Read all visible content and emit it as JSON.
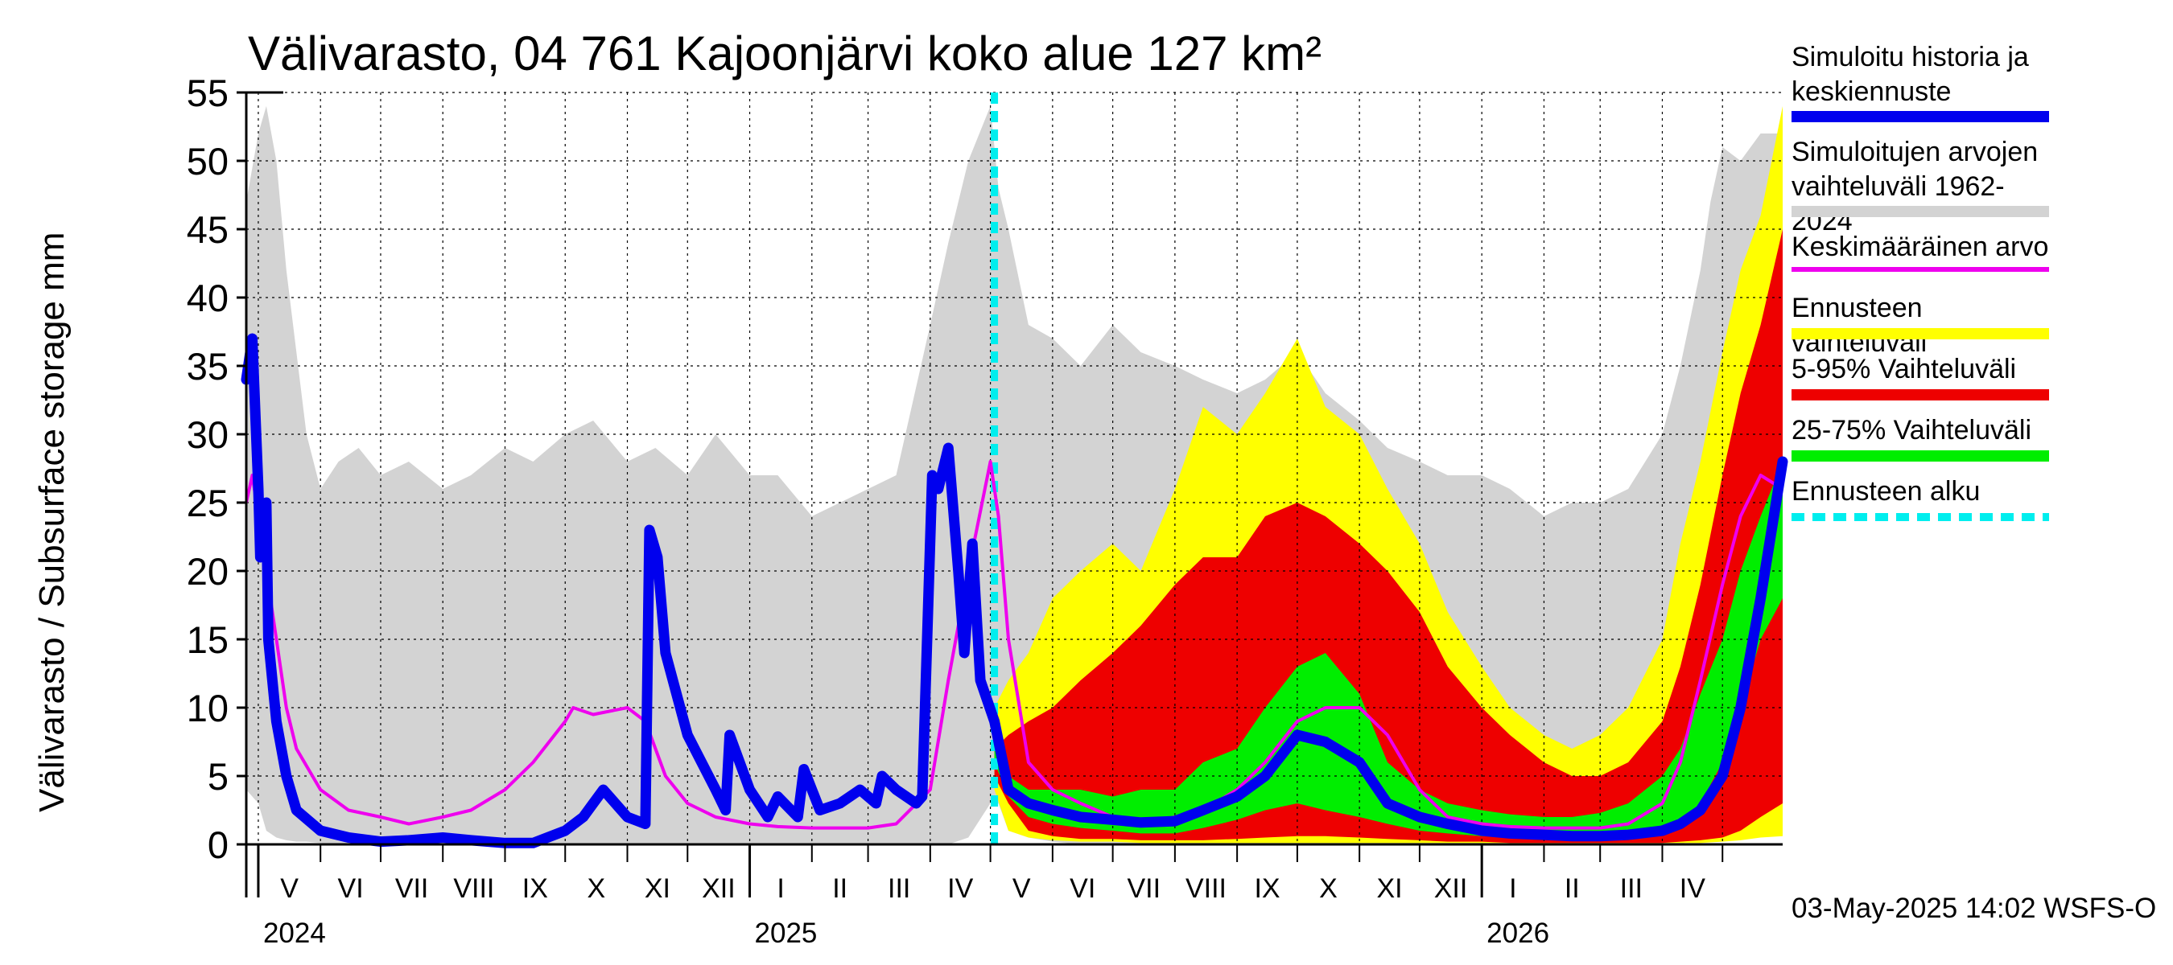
{
  "title": "Välivarasto, 04 761 Kajoonjärvi koko alue 127 km²",
  "ylabel": "Välivarasto / Subsurface storage  mm",
  "timestamp": "03-May-2025 14:02 WSFS-O",
  "legend": [
    {
      "label": "Simuloitu historia ja\nkeskiennuste",
      "color": "#0000ee",
      "style": "solid"
    },
    {
      "label": "Simuloitujen arvojen\nvaihteluväli 1962-2024",
      "color": "#d3d3d3",
      "style": "solid"
    },
    {
      "label": "Keskimääräinen arvo",
      "color": "#ee00ee",
      "style": "solid"
    },
    {
      "label": "Ennusteen vaihteluväli",
      "color": "#ffff00",
      "style": "solid"
    },
    {
      "label": "5-95% Vaihteluväli",
      "color": "#ee0000",
      "style": "solid"
    },
    {
      "label": "25-75% Vaihteluväli",
      "color": "#00ee00",
      "style": "solid"
    },
    {
      "label": "Ennusteen alku",
      "color": "#00eeee",
      "style": "dashed"
    }
  ],
  "chart_data": {
    "type": "line",
    "ylim": [
      0,
      55
    ],
    "yticks": [
      0,
      5,
      10,
      15,
      20,
      25,
      30,
      35,
      40,
      45,
      50,
      55
    ],
    "x_range": [
      "2024-04-25",
      "2026-05-31"
    ],
    "months": [
      "V",
      "VI",
      "VII",
      "VIII",
      "IX",
      "X",
      "XI",
      "XII",
      "I",
      "II",
      "III",
      "IV",
      "V",
      "VI",
      "VII",
      "VIII",
      "IX",
      "X",
      "XI",
      "XII",
      "I",
      "II",
      "III",
      "IV"
    ],
    "month_starts": [
      "2024-05-01",
      "2024-06-01",
      "2024-07-01",
      "2024-08-01",
      "2024-09-01",
      "2024-10-01",
      "2024-11-01",
      "2024-12-01",
      "2025-01-01",
      "2025-02-01",
      "2025-03-01",
      "2025-04-01",
      "2025-05-01",
      "2025-06-01",
      "2025-07-01",
      "2025-08-01",
      "2025-09-01",
      "2025-10-01",
      "2025-11-01",
      "2025-12-01",
      "2026-01-01",
      "2026-02-01",
      "2026-03-01",
      "2026-04-01",
      "2026-05-01"
    ],
    "years": [
      {
        "label": "2024",
        "date": "2024-05-01"
      },
      {
        "label": "2025",
        "date": "2025-01-01"
      },
      {
        "label": "2026",
        "date": "2026-01-01"
      }
    ],
    "forecast_start": "2025-05-03",
    "grid": true,
    "legend_position": "right",
    "historical_range": {
      "name": "Simuloitujen arvojen vaihteluväli 1962-2024",
      "color": "#d3d3d3",
      "x": [
        "2024-04-25",
        "2024-05-01",
        "2024-05-05",
        "2024-05-10",
        "2024-05-15",
        "2024-05-20",
        "2024-05-25",
        "2024-06-01",
        "2024-06-10",
        "2024-06-20",
        "2024-07-01",
        "2024-07-15",
        "2024-08-01",
        "2024-08-15",
        "2024-09-01",
        "2024-09-15",
        "2024-10-01",
        "2024-10-15",
        "2024-11-01",
        "2024-11-15",
        "2024-12-01",
        "2024-12-15",
        "2025-01-01",
        "2025-01-15",
        "2025-02-01",
        "2025-02-15",
        "2025-03-01",
        "2025-03-15",
        "2025-04-01",
        "2025-04-10",
        "2025-04-20",
        "2025-05-01",
        "2025-05-05",
        "2025-05-10",
        "2025-05-20",
        "2025-06-01",
        "2025-06-15",
        "2025-07-01",
        "2025-07-15",
        "2025-08-01",
        "2025-08-15",
        "2025-09-01",
        "2025-09-15",
        "2025-10-01",
        "2025-10-15",
        "2025-11-01",
        "2025-11-15",
        "2025-12-01",
        "2025-12-15",
        "2026-01-01",
        "2026-01-15",
        "2026-02-01",
        "2026-02-15",
        "2026-03-01",
        "2026-03-15",
        "2026-04-01",
        "2026-04-10",
        "2026-04-20",
        "2026-04-25",
        "2026-05-01",
        "2026-05-10",
        "2026-05-20",
        "2026-05-31"
      ],
      "low": [
        4,
        3,
        1,
        0.5,
        0.3,
        0.2,
        0.2,
        0.1,
        0,
        0,
        0,
        0,
        0,
        0,
        0,
        0,
        0,
        0,
        0,
        0,
        0,
        0,
        0,
        0,
        0,
        0,
        0,
        0,
        0,
        0,
        0.5,
        3,
        3,
        1,
        0.5,
        0.2,
        0,
        0,
        0,
        0,
        0,
        0,
        0,
        0,
        0,
        0,
        0,
        0,
        0,
        0,
        0,
        0,
        0,
        0,
        0,
        0,
        0,
        0.5,
        1.5,
        3,
        4,
        3,
        2
      ],
      "high": [
        47,
        52,
        54,
        50,
        42,
        36,
        30,
        26,
        28,
        29,
        27,
        28,
        26,
        27,
        29,
        28,
        30,
        31,
        28,
        29,
        27,
        30,
        27,
        27,
        24,
        25,
        26,
        27,
        38,
        44,
        50,
        54,
        48,
        45,
        38,
        37,
        35,
        38,
        36,
        35,
        34,
        33,
        34,
        36,
        33,
        31,
        29,
        28,
        27,
        27,
        26,
        24,
        25,
        25,
        26,
        30,
        35,
        42,
        47,
        51,
        50,
        52,
        52
      ]
    },
    "forecast_full_range": {
      "name": "Ennusteen vaihteluväli",
      "color": "#ffff00",
      "x": [
        "2025-05-03",
        "2025-05-10",
        "2025-05-20",
        "2025-06-01",
        "2025-06-15",
        "2025-07-01",
        "2025-07-15",
        "2025-08-01",
        "2025-08-15",
        "2025-09-01",
        "2025-09-15",
        "2025-10-01",
        "2025-10-15",
        "2025-11-01",
        "2025-11-15",
        "2025-12-01",
        "2025-12-15",
        "2026-01-01",
        "2026-01-15",
        "2026-02-01",
        "2026-02-15",
        "2026-03-01",
        "2026-03-15",
        "2026-04-01",
        "2026-04-10",
        "2026-04-20",
        "2026-05-01",
        "2026-05-10",
        "2026-05-20",
        "2026-05-31"
      ],
      "low": [
        4,
        1,
        0.5,
        0.3,
        0.2,
        0.2,
        0.1,
        0.1,
        0.1,
        0.1,
        0.1,
        0.1,
        0.1,
        0.1,
        0.1,
        0.1,
        0.1,
        0.1,
        0.1,
        0.1,
        0.1,
        0.1,
        0.1,
        0.1,
        0.1,
        0.1,
        0.2,
        0.3,
        0.5,
        0.6
      ],
      "high": [
        10,
        12,
        14,
        18,
        20,
        22,
        20,
        26,
        32,
        30,
        33,
        37,
        32,
        30,
        26,
        22,
        17,
        13,
        10,
        8,
        7,
        8,
        10,
        15,
        22,
        28,
        36,
        42,
        46,
        54
      ]
    },
    "forecast_5_95": {
      "name": "5-95% Vaihteluväli",
      "color": "#ee0000",
      "x": [
        "2025-05-03",
        "2025-05-10",
        "2025-05-20",
        "2025-06-01",
        "2025-06-15",
        "2025-07-01",
        "2025-07-15",
        "2025-08-01",
        "2025-08-15",
        "2025-09-01",
        "2025-09-15",
        "2025-10-01",
        "2025-10-15",
        "2025-11-01",
        "2025-11-15",
        "2025-12-01",
        "2025-12-15",
        "2026-01-01",
        "2026-01-15",
        "2026-02-01",
        "2026-02-15",
        "2026-03-01",
        "2026-03-15",
        "2026-04-01",
        "2026-04-10",
        "2026-04-20",
        "2026-05-01",
        "2026-05-10",
        "2026-05-20",
        "2026-05-31"
      ],
      "low": [
        5,
        3,
        1,
        0.6,
        0.4,
        0.4,
        0.3,
        0.3,
        0.3,
        0.4,
        0.5,
        0.6,
        0.6,
        0.5,
        0.4,
        0.3,
        0.2,
        0.2,
        0.1,
        0.1,
        0.1,
        0.1,
        0.1,
        0.1,
        0.2,
        0.3,
        0.5,
        1,
        2,
        3
      ],
      "high": [
        7,
        8,
        9,
        10,
        12,
        14,
        16,
        19,
        21,
        21,
        24,
        25,
        24,
        22,
        20,
        17,
        13,
        10,
        8,
        6,
        5,
        5,
        6,
        9,
        13,
        19,
        27,
        33,
        38,
        45
      ]
    },
    "forecast_25_75": {
      "name": "25-75% Vaihteluväli",
      "color": "#00ee00",
      "x": [
        "2025-05-03",
        "2025-05-10",
        "2025-05-20",
        "2025-06-01",
        "2025-06-15",
        "2025-07-01",
        "2025-07-15",
        "2025-08-01",
        "2025-08-15",
        "2025-09-01",
        "2025-09-15",
        "2025-10-01",
        "2025-10-15",
        "2025-11-01",
        "2025-11-15",
        "2025-12-01",
        "2025-12-15",
        "2026-01-01",
        "2026-01-15",
        "2026-02-01",
        "2026-02-15",
        "2026-03-01",
        "2026-03-15",
        "2026-04-01",
        "2026-04-10",
        "2026-04-20",
        "2026-05-01",
        "2026-05-10",
        "2026-05-20",
        "2026-05-31"
      ],
      "low": [
        6,
        3.5,
        2,
        1.5,
        1.2,
        1,
        0.8,
        0.8,
        1.2,
        1.8,
        2.5,
        3,
        2.5,
        2,
        1.5,
        1,
        0.8,
        0.6,
        0.5,
        0.4,
        0.4,
        0.4,
        0.5,
        0.8,
        1.5,
        3,
        6,
        10,
        15,
        18
      ],
      "high": [
        7,
        5,
        4,
        4,
        4,
        3.5,
        4,
        4,
        6,
        7,
        10,
        13,
        14,
        11,
        6,
        4,
        3,
        2.5,
        2.2,
        2,
        2,
        2.3,
        3,
        5,
        7,
        11,
        15,
        20,
        24,
        28
      ]
    },
    "series": [
      {
        "name": "Simuloitu historia ja keskiennuste",
        "color": "#0000ee",
        "x": [
          "2024-04-25",
          "2024-04-28",
          "2024-05-01",
          "2024-05-02",
          "2024-05-05",
          "2024-05-06",
          "2024-05-10",
          "2024-05-15",
          "2024-05-20",
          "2024-06-01",
          "2024-06-15",
          "2024-07-01",
          "2024-07-15",
          "2024-08-01",
          "2024-08-15",
          "2024-09-01",
          "2024-09-15",
          "2024-10-01",
          "2024-10-10",
          "2024-10-15",
          "2024-10-20",
          "2024-11-01",
          "2024-11-10",
          "2024-11-12",
          "2024-11-16",
          "2024-11-20",
          "2024-12-01",
          "2024-12-15",
          "2024-12-20",
          "2024-12-22",
          "2025-01-01",
          "2025-01-10",
          "2025-01-15",
          "2025-01-25",
          "2025-01-28",
          "2025-02-05",
          "2025-02-15",
          "2025-02-25",
          "2025-03-05",
          "2025-03-08",
          "2025-03-15",
          "2025-03-25",
          "2025-03-28",
          "2025-04-02",
          "2025-04-05",
          "2025-04-10",
          "2025-04-15",
          "2025-04-18",
          "2025-04-22",
          "2025-04-26",
          "2025-05-03",
          "2025-05-10",
          "2025-05-20",
          "2025-06-01",
          "2025-06-15",
          "2025-07-01",
          "2025-07-15",
          "2025-08-01",
          "2025-08-15",
          "2025-09-01",
          "2025-09-15",
          "2025-10-01",
          "2025-10-15",
          "2025-11-01",
          "2025-11-15",
          "2025-12-01",
          "2025-12-15",
          "2026-01-01",
          "2026-01-15",
          "2026-02-01",
          "2026-02-15",
          "2026-03-01",
          "2026-03-15",
          "2026-04-01",
          "2026-04-10",
          "2026-04-20",
          "2026-05-01",
          "2026-05-10",
          "2026-05-20",
          "2026-05-31"
        ],
        "values": [
          34,
          37,
          26,
          21,
          25,
          15,
          9,
          5,
          2.5,
          1,
          0.5,
          0.2,
          0.3,
          0.5,
          0.3,
          0.1,
          0.1,
          1,
          2,
          3,
          4,
          2,
          1.5,
          23,
          21,
          14,
          8,
          4,
          2.5,
          8,
          4,
          2,
          3.5,
          2,
          5.5,
          2.5,
          3,
          4,
          3,
          5,
          4,
          3,
          3.5,
          27,
          26,
          29,
          20,
          14,
          22,
          12,
          9,
          4,
          3,
          2.5,
          2,
          1.8,
          1.6,
          1.7,
          2.5,
          3.5,
          5,
          8,
          7.5,
          6,
          3,
          2,
          1.5,
          1,
          0.8,
          0.7,
          0.6,
          0.6,
          0.7,
          1,
          1.5,
          2.5,
          5,
          10,
          18,
          28
        ]
      },
      {
        "name": "Keskimääräinen arvo",
        "color": "#ee00ee",
        "x": [
          "2024-04-25",
          "2024-04-28",
          "2024-05-01",
          "2024-05-05",
          "2024-05-10",
          "2024-05-15",
          "2024-05-20",
          "2024-06-01",
          "2024-06-15",
          "2024-07-01",
          "2024-07-15",
          "2024-08-01",
          "2024-08-15",
          "2024-09-01",
          "2024-09-15",
          "2024-10-01",
          "2024-10-05",
          "2024-10-15",
          "2024-11-01",
          "2024-11-10",
          "2024-11-20",
          "2024-12-01",
          "2024-12-15",
          "2025-01-01",
          "2025-01-15",
          "2025-02-01",
          "2025-02-15",
          "2025-03-01",
          "2025-03-15",
          "2025-04-01",
          "2025-04-10",
          "2025-04-20",
          "2025-05-01",
          "2025-05-05",
          "2025-05-10",
          "2025-05-20",
          "2025-06-01",
          "2025-06-15",
          "2025-07-01",
          "2025-07-15",
          "2025-08-01",
          "2025-08-15",
          "2025-09-01",
          "2025-09-15",
          "2025-10-01",
          "2025-10-15",
          "2025-11-01",
          "2025-11-15",
          "2025-12-01",
          "2025-12-15",
          "2026-01-01",
          "2026-01-15",
          "2026-02-01",
          "2026-02-15",
          "2026-03-01",
          "2026-03-15",
          "2026-04-01",
          "2026-04-10",
          "2026-04-20",
          "2026-05-01",
          "2026-05-10",
          "2026-05-20",
          "2026-05-31"
        ],
        "values": [
          25,
          27,
          24,
          20,
          15,
          10,
          7,
          4,
          2.5,
          2,
          1.5,
          2,
          2.5,
          4,
          6,
          9,
          10,
          9.5,
          10,
          9,
          5,
          3,
          2,
          1.5,
          1.3,
          1.2,
          1.2,
          1.2,
          1.5,
          4,
          12,
          20,
          28,
          24,
          15,
          6,
          4,
          3,
          2,
          1.5,
          2,
          2.5,
          4,
          6,
          9,
          10,
          10,
          8,
          4,
          2,
          1.5,
          1.3,
          1.2,
          1.2,
          1.2,
          1.5,
          3,
          6,
          12,
          19,
          24,
          27,
          26
        ]
      }
    ]
  }
}
